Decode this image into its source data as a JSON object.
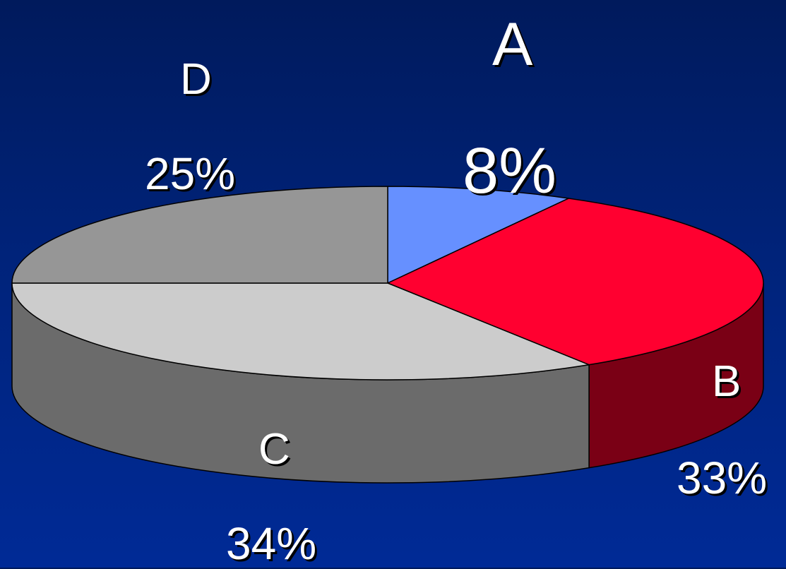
{
  "chart_data": {
    "type": "pie",
    "style": "3d",
    "legend": "none",
    "slices": [
      {
        "label": "A",
        "value": 8,
        "value_label": "8%",
        "color": "#6690ff",
        "side_color": "#3a55a8"
      },
      {
        "label": "B",
        "value": 33,
        "value_label": "33%",
        "color": "#ff0030",
        "side_color": "#7a0015"
      },
      {
        "label": "C",
        "value": 34,
        "value_label": "34%",
        "color": "#cccccc",
        "side_color": "#6b6b6b"
      },
      {
        "label": "D",
        "value": 25,
        "value_label": "25%",
        "color": "#969696",
        "side_color": "#5a5a5a"
      }
    ]
  },
  "colors": {
    "background_top": "#001a5c",
    "background_bottom": "#002a96",
    "label_text": "#ffffff",
    "outline": "#000000"
  }
}
